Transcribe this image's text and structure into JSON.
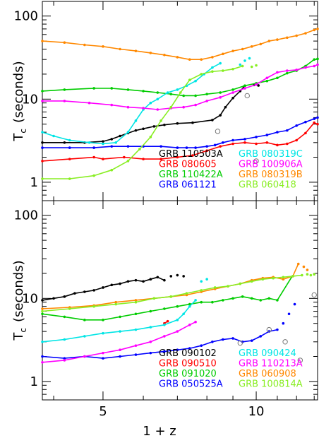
{
  "chart_data": [
    {
      "type": "line",
      "xscale": "log",
      "yscale": "log",
      "xlim": [
        3.8,
        13.2
      ],
      "ylim": [
        0.6,
        150
      ],
      "y_ticks": [
        1,
        10,
        100
      ],
      "ylabel_main": "T",
      "ylabel_sub": "c",
      "ylabel_rest": "(seconds)",
      "series": [
        {
          "name": "GRB 110503A",
          "color": "#000000",
          "x": [
            3.8,
            4.2,
            4.6,
            5.0,
            5.2,
            5.4,
            5.6,
            5.8,
            6.0,
            6.3,
            6.6,
            7.0,
            7.5,
            8.2,
            8.5,
            8.7,
            9.0,
            9.3,
            9.5
          ],
          "y": [
            3.0,
            3.0,
            3.0,
            3.1,
            3.3,
            3.6,
            3.9,
            4.2,
            4.4,
            4.7,
            4.9,
            5.1,
            5.2,
            5.6,
            6.4,
            8.0,
            10.3,
            12.5,
            14.5
          ],
          "gap_x": [
            9.9,
            10.1
          ],
          "gap_y": [
            14.8,
            14.6
          ]
        },
        {
          "name": "GRB 080605",
          "color": "#ff0000",
          "x": [
            3.8,
            4.3,
            4.8,
            5.0,
            5.5,
            6.0,
            6.5,
            7.0,
            7.5,
            8.0,
            8.5,
            9.0,
            9.5,
            10.0,
            10.5,
            11.0,
            11.5,
            12.0,
            12.5,
            13.0,
            13.2
          ],
          "y": [
            1.8,
            1.9,
            2.0,
            1.9,
            2.0,
            1.9,
            1.9,
            2.0,
            2.1,
            2.4,
            2.7,
            2.9,
            3.0,
            2.9,
            3.0,
            2.8,
            2.9,
            3.2,
            3.9,
            5.2,
            5.0
          ]
        },
        {
          "name": "GRB 110422A",
          "color": "#00cc00",
          "x": [
            3.8,
            4.2,
            4.8,
            5.2,
            5.6,
            6.0,
            6.4,
            6.8,
            7.2,
            7.6,
            8.0,
            8.5,
            9.0,
            9.5,
            10.0,
            10.5,
            11.0,
            11.5,
            12.0,
            12.5,
            13.0,
            13.2
          ],
          "y": [
            12.5,
            13.0,
            13.5,
            13.5,
            13.0,
            12.5,
            12.0,
            11.5,
            11.0,
            11.0,
            11.5,
            12.0,
            13.0,
            14.5,
            15.5,
            16.5,
            18.0,
            20.5,
            22.0,
            25.0,
            30.0,
            30.5
          ]
        },
        {
          "name": "GRB 061121",
          "color": "#0000ff",
          "x": [
            3.8,
            4.3,
            4.8,
            5.2,
            5.6,
            6.0,
            6.5,
            7.0,
            7.3,
            7.6,
            8.0,
            8.3,
            8.6,
            9.0,
            9.5,
            10.0,
            10.5,
            11.0,
            11.5,
            12.0,
            12.5,
            13.0,
            13.2
          ],
          "y": [
            2.6,
            2.6,
            2.6,
            2.7,
            2.7,
            2.7,
            2.7,
            2.6,
            2.6,
            2.6,
            2.7,
            2.8,
            3.0,
            3.2,
            3.3,
            3.5,
            3.7,
            4.0,
            4.2,
            4.8,
            5.3,
            5.8,
            6.0
          ]
        },
        {
          "name": "GRB 080319C",
          "color": "#00e5e5",
          "x": [
            3.8,
            4.0,
            4.3,
            4.7,
            5.0,
            5.3,
            5.6,
            5.8,
            6.0,
            6.2,
            6.4,
            6.7,
            7.0,
            7.3,
            7.6,
            7.9,
            8.2,
            8.5
          ],
          "y": [
            4.0,
            3.6,
            3.2,
            3.0,
            2.9,
            3.0,
            4.0,
            5.5,
            7.5,
            9.0,
            10.0,
            12.0,
            13.0,
            14.5,
            16.5,
            20.0,
            24.0,
            27.0
          ],
          "gap_x": [
            9.3,
            9.5,
            9.7
          ],
          "gap_y": [
            26.0,
            29.0,
            31.0
          ]
        },
        {
          "name": "GRB 100906A",
          "color": "#ff00ff",
          "x": [
            3.8,
            4.2,
            4.7,
            5.2,
            5.6,
            6.0,
            6.4,
            6.8,
            7.2,
            7.6,
            8.0,
            8.5,
            9.0,
            9.5,
            10.0,
            10.5,
            11.0,
            11.5,
            12.0,
            12.5,
            13.0,
            13.2
          ],
          "y": [
            9.5,
            9.5,
            9.0,
            8.5,
            8.0,
            7.8,
            7.5,
            7.8,
            8.0,
            8.5,
            9.5,
            10.5,
            12.0,
            13.5,
            15.0,
            18.0,
            21.0,
            22.0,
            22.5,
            24.0,
            25.0,
            26.0
          ]
        },
        {
          "name": "GRB 080319B",
          "color": "#ff8800",
          "x": [
            3.8,
            4.2,
            4.6,
            5.0,
            5.4,
            5.8,
            6.2,
            6.6,
            7.0,
            7.4,
            7.8,
            8.2,
            8.6,
            9.0,
            9.4,
            9.8,
            10.2,
            10.6,
            11.0,
            11.5,
            12.0,
            12.5,
            13.0,
            13.2
          ],
          "y": [
            50,
            48,
            45,
            43,
            40,
            38,
            36,
            34,
            32,
            30,
            30,
            32,
            35,
            38,
            40,
            43,
            46,
            50,
            52,
            55,
            58,
            62,
            68,
            70
          ]
        },
        {
          "name": "GRB 060418",
          "color": "#88ee22",
          "x": [
            3.8,
            4.3,
            4.8,
            5.2,
            5.6,
            5.9,
            6.2,
            6.5,
            6.8,
            7.1,
            7.4,
            7.8,
            8.2,
            8.6,
            9.0,
            9.4
          ],
          "y": [
            1.1,
            1.1,
            1.2,
            1.4,
            1.8,
            2.5,
            3.5,
            5.5,
            8.0,
            12.0,
            17.0,
            20.0,
            21.5,
            22.0,
            23.0,
            25.0
          ],
          "gap_x": [
            9.8,
            10.0
          ],
          "gap_y": [
            24.5,
            25.5
          ]
        }
      ],
      "open_circles": {
        "x": [
          8.4,
          9.6,
          10.0
        ],
        "y": [
          4.1,
          11.0,
          1.8
        ]
      },
      "legend": {
        "col1": [
          {
            "label": "GRB 110503A",
            "color": "#000000"
          },
          {
            "label": "GRB 080605",
            "color": "#ff0000"
          },
          {
            "label": "GRB 110422A",
            "color": "#00cc00"
          },
          {
            "label": "GRB 061121",
            "color": "#0000ff"
          }
        ],
        "col2": [
          {
            "label": "GRB 080319C",
            "color": "#00e5e5"
          },
          {
            "label": "GRB 100906A",
            "color": "#ff00ff"
          },
          {
            "label": "GRB 080319B",
            "color": "#ff8800"
          },
          {
            "label": "GRB 060418",
            "color": "#88ee22"
          }
        ]
      }
    },
    {
      "type": "line",
      "xscale": "log",
      "yscale": "log",
      "xlim": [
        3.8,
        13.2
      ],
      "ylim": [
        0.6,
        150
      ],
      "y_ticks": [
        1,
        10,
        100
      ],
      "x_ticks": [
        5,
        10
      ],
      "xlabel": "1 + z",
      "ylabel_main": "T",
      "ylabel_sub": "c",
      "ylabel_rest": "(seconds)",
      "series": [
        {
          "name": "GRB 090102",
          "color": "#000000",
          "x": [
            3.8,
            4.0,
            4.2,
            4.4,
            4.6,
            4.8,
            5.0,
            5.2,
            5.4,
            5.6,
            5.8,
            6.0,
            6.2,
            6.4,
            6.6
          ],
          "y": [
            9.5,
            10.0,
            10.5,
            11.5,
            12.0,
            12.5,
            13.5,
            14.5,
            15.0,
            16.0,
            16.5,
            16.0,
            17.0,
            18.0,
            16.5
          ],
          "gap_x": [
            6.8,
            7.0,
            7.2
          ],
          "gap_y": [
            18.5,
            19.0,
            18.5
          ]
        },
        {
          "name": "GRB 090510",
          "color": "#ff0000",
          "x": [
            6.6,
            6.7
          ],
          "y": [
            5.0,
            5.3
          ]
        },
        {
          "name": "GRB 091020",
          "color": "#00cc00",
          "x": [
            3.8,
            4.2,
            4.6,
            5.0,
            5.4,
            5.8,
            6.2,
            6.6,
            7.0,
            7.4,
            7.8,
            8.2,
            8.6,
            9.0,
            9.4,
            9.8,
            10.2,
            10.6,
            11.0
          ],
          "y": [
            6.5,
            6.0,
            5.5,
            5.5,
            6.0,
            6.5,
            7.0,
            7.5,
            8.0,
            8.5,
            9.0,
            9.0,
            9.5,
            10.0,
            10.5,
            10.0,
            9.5,
            10.0,
            9.5
          ],
          "bridge_x": [
            11.0,
            11.8
          ],
          "bridge_y": [
            9.5,
            19.0
          ]
        },
        {
          "name": "GRB 050525A",
          "color": "#0000ff",
          "x": [
            3.8,
            4.2,
            4.6,
            5.0,
            5.4,
            5.8,
            6.2,
            6.6,
            7.0,
            7.4,
            7.8,
            8.2,
            8.6,
            9.0,
            9.4,
            9.8,
            10.2,
            10.6,
            11.0
          ],
          "y": [
            2.0,
            1.9,
            2.0,
            1.9,
            2.0,
            2.1,
            2.2,
            2.3,
            2.4,
            2.5,
            2.7,
            3.0,
            3.2,
            3.3,
            3.0,
            3.1,
            3.5,
            4.0,
            4.2
          ],
          "gap_x": [
            11.3,
            11.6,
            11.9
          ],
          "gap_y": [
            5.0,
            6.5,
            8.5
          ]
        },
        {
          "name": "GRB 090424",
          "color": "#00e5e5",
          "x": [
            3.8,
            4.2,
            4.6,
            5.0,
            5.4,
            5.8,
            6.2,
            6.6,
            7.0,
            7.2,
            7.4,
            7.6
          ],
          "y": [
            3.0,
            3.2,
            3.5,
            3.8,
            4.0,
            4.2,
            4.5,
            4.8,
            5.5,
            6.5,
            8.0,
            9.5
          ],
          "gap_x": [
            7.8,
            8.0
          ],
          "gap_y": [
            16.0,
            17.0
          ]
        },
        {
          "name": "GRB 110213A",
          "color": "#ff00ff",
          "x": [
            3.8,
            4.2,
            4.6,
            5.0,
            5.4,
            5.8,
            6.2,
            6.6,
            7.0,
            7.4,
            7.6
          ],
          "y": [
            1.7,
            1.8,
            2.0,
            2.2,
            2.4,
            2.7,
            3.0,
            3.5,
            4.0,
            4.8,
            5.2
          ]
        },
        {
          "name": "GRB 060908",
          "color": "#ff8800",
          "x": [
            3.8,
            4.3,
            4.8,
            5.3,
            5.8,
            6.3,
            6.8,
            7.3,
            7.8,
            8.3,
            8.8,
            9.3,
            9.8,
            10.3,
            10.8,
            11.3,
            11.8,
            12.1
          ],
          "y": [
            7.5,
            7.8,
            8.2,
            9.0,
            9.5,
            10.0,
            10.5,
            11.0,
            12.0,
            13.0,
            14.0,
            15.0,
            16.5,
            17.5,
            18.0,
            17.0,
            18.5,
            26.0
          ],
          "gap_x": [
            12.4,
            12.6
          ],
          "gap_y": [
            24.0,
            22.0
          ]
        },
        {
          "name": "GRB 100814A",
          "color": "#88ee22",
          "x": [
            3.8,
            4.3,
            4.8,
            5.3,
            5.8,
            6.3,
            6.8,
            7.3,
            7.8,
            8.3,
            8.8,
            9.3,
            9.8,
            10.3,
            10.8,
            11.3,
            11.8,
            12.3
          ],
          "y": [
            7.0,
            7.5,
            8.0,
            8.5,
            9.0,
            10.0,
            10.5,
            11.5,
            12.5,
            13.5,
            14.0,
            15.0,
            16.0,
            17.0,
            17.5,
            18.0,
            18.5,
            19.0
          ],
          "gap_x": [
            12.6,
            12.8,
            13.0
          ],
          "gap_y": [
            19.5,
            19.0,
            19.5
          ]
        }
      ],
      "open_circles": {
        "x": [
          9.3,
          10.6,
          11.4,
          12.2,
          13.0
        ],
        "y": [
          2.9,
          4.2,
          3.0,
          1.8,
          11.0
        ]
      },
      "legend": {
        "col1": [
          {
            "label": "GRB 090102",
            "color": "#000000"
          },
          {
            "label": "GRB 090510",
            "color": "#ff0000"
          },
          {
            "label": "GRB 091020",
            "color": "#00cc00"
          },
          {
            "label": "GRB 050525A",
            "color": "#0000ff"
          }
        ],
        "col2": [
          {
            "label": "GRB 090424",
            "color": "#00e5e5"
          },
          {
            "label": "GRB 110213A",
            "color": "#ff00ff"
          },
          {
            "label": "GRB 060908",
            "color": "#ff8800"
          },
          {
            "label": "GRB 100814A",
            "color": "#88ee22"
          }
        ]
      }
    }
  ]
}
